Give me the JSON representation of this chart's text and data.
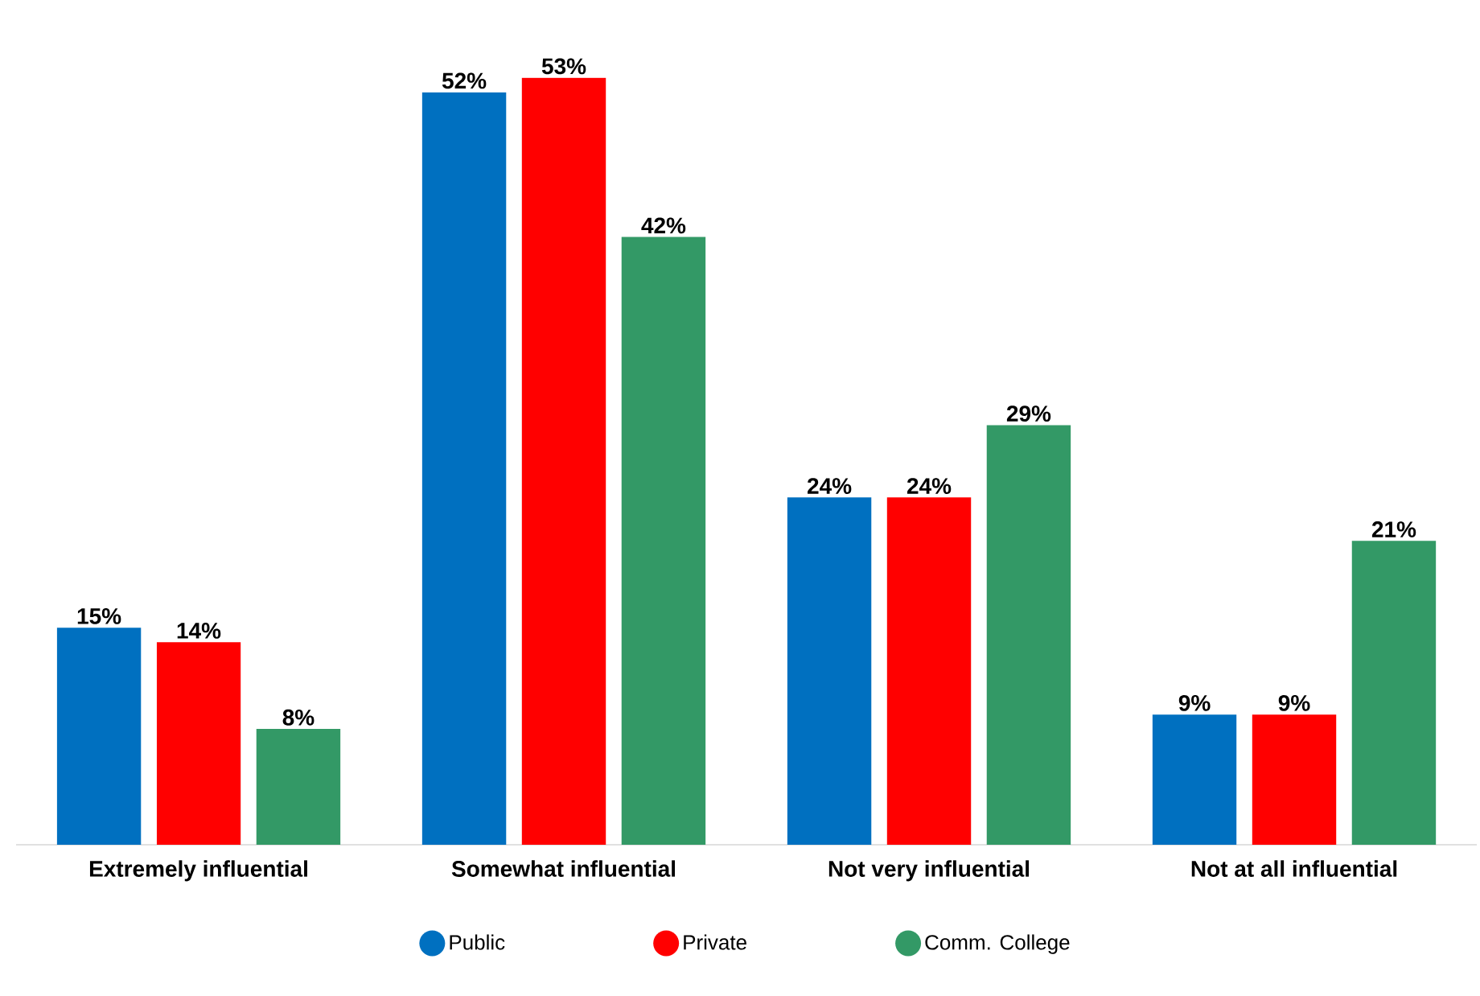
{
  "chart_data": {
    "type": "bar",
    "categories": [
      "Extremely influential",
      "Somewhat influential",
      "Not very influential",
      "Not at all influential"
    ],
    "series": [
      {
        "name": "Public",
        "color": "#0070c0",
        "values": [
          15,
          52,
          24,
          9
        ],
        "value_labels": [
          "15%",
          "52%",
          "24%",
          "9%"
        ]
      },
      {
        "name": "Private",
        "color": "#ff0000",
        "values": [
          14,
          53,
          24,
          9
        ],
        "value_labels": [
          "14%",
          "53%",
          "24%",
          "9%"
        ]
      },
      {
        "name": "Comm. College",
        "color": "#339966",
        "values": [
          8,
          42,
          29,
          21
        ],
        "value_labels": [
          "8%",
          "42%",
          "29%",
          "21%"
        ]
      }
    ],
    "legend": "bottom"
  }
}
